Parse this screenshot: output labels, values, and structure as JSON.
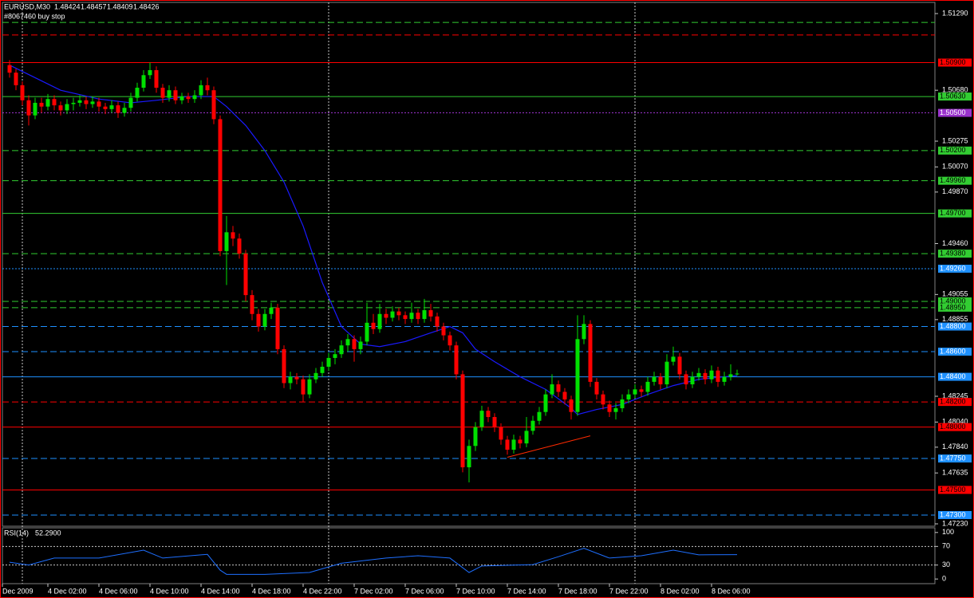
{
  "chart_data": [
    {
      "type": "candlestick",
      "symbol": "EURUSD,M30",
      "order_note": "#8067460 buy stop",
      "xlim": [
        -1.125,
        145
      ],
      "ylim": [
        1.47211,
        1.51379
      ],
      "xticks": [
        {
          "value": -1.125,
          "label": "Dec 2009"
        },
        {
          "value": 6,
          "label": "4 Dec 02:00"
        },
        {
          "value": 14,
          "label": "4 Dec 06:00"
        },
        {
          "value": 22,
          "label": "4 Dec 10:00"
        },
        {
          "value": 30,
          "label": "4 Dec 14:00"
        },
        {
          "value": 38,
          "label": "4 Dec 18:00"
        },
        {
          "value": 46,
          "label": "4 Dec 22:00"
        },
        {
          "value": 54,
          "label": "7 Dec 02:00"
        },
        {
          "value": 62,
          "label": "7 Dec 06:00"
        },
        {
          "value": 70,
          "label": "7 Dec 10:00"
        },
        {
          "value": 78,
          "label": "7 Dec 14:00"
        },
        {
          "value": 86,
          "label": "7 Dec 18:00"
        },
        {
          "value": 94,
          "label": "7 Dec 22:00"
        },
        {
          "value": 102,
          "label": "8 Dec 02:00"
        },
        {
          "value": 110,
          "label": "8 Dec 06:00"
        }
      ],
      "vgrid": [
        2,
        50,
        98
      ],
      "yticks": [
        {
          "value": 1.5129,
          "label": "1.51290"
        },
        {
          "value": 1.5068,
          "label": "1.50680"
        },
        {
          "value": 1.50275,
          "label": "1.50275"
        },
        {
          "value": 1.5007,
          "label": "1.50070"
        },
        {
          "value": 1.4987,
          "label": "1.49870"
        },
        {
          "value": 1.4946,
          "label": "1.49460"
        },
        {
          "value": 1.49055,
          "label": "1.49055"
        },
        {
          "value": 1.48855,
          "label": "1.48855"
        },
        {
          "value": 1.48245,
          "label": "1.48245"
        },
        {
          "value": 1.4804,
          "label": "1.48040"
        },
        {
          "value": 1.4784,
          "label": "1.47840"
        },
        {
          "value": 1.47635,
          "label": "1.47635"
        },
        {
          "value": 1.4723,
          "label": "1.47230"
        }
      ],
      "bull_color": "#00e000",
      "bear_color": "#ff0000",
      "candles": [
        [
          1.5088,
          1.5092,
          1.5078,
          1.5082
        ],
        [
          1.5082,
          1.5085,
          1.5068,
          1.5072
        ],
        [
          1.5072,
          1.5075,
          1.5056,
          1.506
        ],
        [
          1.506,
          1.5064,
          1.504,
          1.5048
        ],
        [
          1.5048,
          1.5062,
          1.5045,
          1.5058
        ],
        [
          1.5058,
          1.5062,
          1.505,
          1.5055
        ],
        [
          1.5055,
          1.5065,
          1.5052,
          1.5061
        ],
        [
          1.5061,
          1.5064,
          1.5052,
          1.5056
        ],
        [
          1.5056,
          1.5059,
          1.5048,
          1.5052
        ],
        [
          1.5052,
          1.5061,
          1.5049,
          1.5057
        ],
        [
          1.5057,
          1.5062,
          1.5052,
          1.5058
        ],
        [
          1.5058,
          1.5064,
          1.5055,
          1.506
        ],
        [
          1.506,
          1.5063,
          1.5053,
          1.5057
        ],
        [
          1.5057,
          1.5063,
          1.5054,
          1.5059
        ],
        [
          1.5059,
          1.5062,
          1.5051,
          1.5055
        ],
        [
          1.5055,
          1.5058,
          1.5049,
          1.5053
        ],
        [
          1.5053,
          1.506,
          1.505,
          1.5056
        ],
        [
          1.5056,
          1.5059,
          1.5046,
          1.505
        ],
        [
          1.505,
          1.5058,
          1.5047,
          1.5054
        ],
        [
          1.5054,
          1.5066,
          1.5051,
          1.5062
        ],
        [
          1.5062,
          1.5074,
          1.5059,
          1.507
        ],
        [
          1.507,
          1.5084,
          1.5067,
          1.508
        ],
        [
          1.508,
          1.509,
          1.5077,
          1.5084
        ],
        [
          1.5084,
          1.5087,
          1.5066,
          1.507
        ],
        [
          1.507,
          1.5073,
          1.5058,
          1.5062
        ],
        [
          1.5062,
          1.5072,
          1.5059,
          1.5068
        ],
        [
          1.5068,
          1.5071,
          1.5057,
          1.506
        ],
        [
          1.506,
          1.5066,
          1.5057,
          1.5063
        ],
        [
          1.5063,
          1.5066,
          1.5058,
          1.5061
        ],
        [
          1.5061,
          1.5068,
          1.5058,
          1.5064
        ],
        [
          1.5064,
          1.5076,
          1.5061,
          1.5072
        ],
        [
          1.5072,
          1.5078,
          1.5064,
          1.5068
        ],
        [
          1.5068,
          1.5071,
          1.5041,
          1.5045
        ],
        [
          1.5045,
          1.5048,
          1.4936,
          1.494
        ],
        [
          1.494,
          1.4968,
          1.4913,
          1.4955
        ],
        [
          1.4955,
          1.496,
          1.4944,
          1.495
        ],
        [
          1.495,
          1.4954,
          1.4934,
          1.4938
        ],
        [
          1.4938,
          1.4941,
          1.49,
          1.4905
        ],
        [
          1.4905,
          1.4909,
          1.4885,
          1.489
        ],
        [
          1.489,
          1.4894,
          1.4876,
          1.488
        ],
        [
          1.488,
          1.4894,
          1.4877,
          1.489
        ],
        [
          1.489,
          1.4899,
          1.4886,
          1.4895
        ],
        [
          1.4895,
          1.4898,
          1.4858,
          1.4862
        ],
        [
          1.4862,
          1.4865,
          1.4831,
          1.4835
        ],
        [
          1.4835,
          1.4844,
          1.483,
          1.484
        ],
        [
          1.484,
          1.4843,
          1.4834,
          1.4838
        ],
        [
          1.4838,
          1.4841,
          1.482,
          1.4826
        ],
        [
          1.4826,
          1.4842,
          1.4823,
          1.4838
        ],
        [
          1.4838,
          1.4847,
          1.4835,
          1.4843
        ],
        [
          1.4843,
          1.4852,
          1.484,
          1.4848
        ],
        [
          1.4848,
          1.4859,
          1.4845,
          1.4855
        ],
        [
          1.4855,
          1.4862,
          1.485,
          1.4858
        ],
        [
          1.4858,
          1.4869,
          1.4855,
          1.4865
        ],
        [
          1.4865,
          1.4874,
          1.486,
          1.487
        ],
        [
          1.487,
          1.4873,
          1.4852,
          1.4862
        ],
        [
          1.4862,
          1.4872,
          1.4858,
          1.4868
        ],
        [
          1.4868,
          1.4899,
          1.4865,
          1.4883
        ],
        [
          1.4883,
          1.489,
          1.4874,
          1.4878
        ],
        [
          1.4878,
          1.4898,
          1.4875,
          1.489
        ],
        [
          1.489,
          1.4894,
          1.4882,
          1.4887
        ],
        [
          1.4887,
          1.4896,
          1.4884,
          1.4892
        ],
        [
          1.4892,
          1.4895,
          1.4885,
          1.4889
        ],
        [
          1.4889,
          1.4892,
          1.4882,
          1.4886
        ],
        [
          1.4886,
          1.4899,
          1.4883,
          1.4891
        ],
        [
          1.4891,
          1.4894,
          1.4882,
          1.4886
        ],
        [
          1.4886,
          1.4902,
          1.4883,
          1.4893
        ],
        [
          1.4893,
          1.4898,
          1.4884,
          1.4888
        ],
        [
          1.4888,
          1.4891,
          1.4876,
          1.488
        ],
        [
          1.488,
          1.4883,
          1.4869,
          1.4873
        ],
        [
          1.4873,
          1.4876,
          1.4861,
          1.4865
        ],
        [
          1.4865,
          1.4868,
          1.4838,
          1.4842
        ],
        [
          1.4842,
          1.4845,
          1.4764,
          1.4768
        ],
        [
          1.4768,
          1.479,
          1.4756,
          1.4785
        ],
        [
          1.4785,
          1.4804,
          1.4781,
          1.48
        ],
        [
          1.48,
          1.4817,
          1.4797,
          1.4813
        ],
        [
          1.4813,
          1.4816,
          1.4804,
          1.4808
        ],
        [
          1.4808,
          1.4811,
          1.4796,
          1.48
        ],
        [
          1.48,
          1.4803,
          1.4786,
          1.479
        ],
        [
          1.479,
          1.4793,
          1.4778,
          1.4782
        ],
        [
          1.4782,
          1.4794,
          1.4779,
          1.479
        ],
        [
          1.479,
          1.4793,
          1.4783,
          1.4787
        ],
        [
          1.4787,
          1.4808,
          1.4784,
          1.4797
        ],
        [
          1.4797,
          1.4809,
          1.4794,
          1.4805
        ],
        [
          1.4805,
          1.4816,
          1.4802,
          1.4812
        ],
        [
          1.4812,
          1.483,
          1.4809,
          1.4826
        ],
        [
          1.4826,
          1.4842,
          1.4823,
          1.4834
        ],
        [
          1.4834,
          1.4837,
          1.4824,
          1.4828
        ],
        [
          1.4828,
          1.4831,
          1.4818,
          1.4822
        ],
        [
          1.4822,
          1.4825,
          1.4806,
          1.4812
        ],
        [
          1.4812,
          1.4889,
          1.4809,
          1.487
        ],
        [
          1.487,
          1.4889,
          1.4866,
          1.4882
        ],
        [
          1.4882,
          1.4885,
          1.4832,
          1.4836
        ],
        [
          1.4836,
          1.4839,
          1.4822,
          1.4826
        ],
        [
          1.4826,
          1.4829,
          1.4814,
          1.4818
        ],
        [
          1.4818,
          1.4821,
          1.4808,
          1.4812
        ],
        [
          1.4812,
          1.4819,
          1.4806,
          1.4815
        ],
        [
          1.4815,
          1.4826,
          1.4812,
          1.4822
        ],
        [
          1.4822,
          1.483,
          1.4819,
          1.4826
        ],
        [
          1.4826,
          1.4834,
          1.4823,
          1.483
        ],
        [
          1.483,
          1.4833,
          1.4824,
          1.4828
        ],
        [
          1.4828,
          1.484,
          1.4825,
          1.4836
        ],
        [
          1.4836,
          1.4844,
          1.4833,
          1.484
        ],
        [
          1.484,
          1.4843,
          1.483,
          1.4834
        ],
        [
          1.4834,
          1.4858,
          1.4831,
          1.4852
        ],
        [
          1.4852,
          1.4864,
          1.4849,
          1.4856
        ],
        [
          1.4856,
          1.4859,
          1.4838,
          1.4842
        ],
        [
          1.4842,
          1.4845,
          1.483,
          1.4834
        ],
        [
          1.4834,
          1.4844,
          1.4831,
          1.484
        ],
        [
          1.484,
          1.4847,
          1.4837,
          1.4843
        ],
        [
          1.4843,
          1.4846,
          1.4834,
          1.4838
        ],
        [
          1.4838,
          1.4849,
          1.4835,
          1.4845
        ],
        [
          1.4845,
          1.4848,
          1.4832,
          1.4836
        ],
        [
          1.4836,
          1.4844,
          1.4833,
          1.484
        ],
        [
          1.484,
          1.485,
          1.4837,
          1.4842
        ],
        [
          1.48424,
          1.48457,
          1.48409,
          1.48426
        ]
      ],
      "ma": {
        "color": "#1a1aff",
        "x": [
          0,
          4,
          8,
          14,
          19,
          23,
          28,
          32,
          34,
          37,
          40,
          43,
          46,
          49,
          52,
          55,
          58,
          62,
          66,
          69,
          71,
          73,
          76,
          80,
          84,
          88,
          89,
          92,
          96,
          100,
          104,
          108,
          112,
          114
        ],
        "values": [
          1.5088,
          1.5078,
          1.5068,
          1.5061,
          1.5058,
          1.506,
          1.5063,
          1.5063,
          1.5055,
          1.504,
          1.502,
          1.4995,
          1.496,
          1.4915,
          1.488,
          1.4866,
          1.4864,
          1.4868,
          1.4875,
          1.488,
          1.4875,
          1.4862,
          1.4852,
          1.484,
          1.483,
          1.4815,
          1.481,
          1.4814,
          1.4818,
          1.4826,
          1.4833,
          1.4838,
          1.484,
          1.4841
        ]
      },
      "trendline": {
        "color": "#ff2a00",
        "x": [
          78,
          91
        ],
        "values": [
          1.4776,
          1.4793
        ]
      },
      "levels": [
        {
          "value": 1.5122,
          "color": "#32cd32",
          "style": "dash"
        },
        {
          "value": 1.5112,
          "color": "#ff0000",
          "style": "dash"
        },
        {
          "value": 1.509,
          "label": "1.50900",
          "color": "#ff0000",
          "style": "solid"
        },
        {
          "value": 1.5063,
          "label": "1.50630",
          "color": "#32cd32",
          "style": "solid"
        },
        {
          "value": 1.505,
          "label": "1.50500",
          "color": "#9932cc",
          "style": "dot"
        },
        {
          "value": 1.502,
          "label": "1.50200",
          "color": "#32cd32",
          "style": "dash"
        },
        {
          "value": 1.4996,
          "label": "1.49960",
          "color": "#32cd32",
          "style": "dash"
        },
        {
          "value": 1.497,
          "label": "1.49700",
          "color": "#32cd32",
          "style": "solid"
        },
        {
          "value": 1.4938,
          "label": "1.49380",
          "color": "#32cd32",
          "style": "dash"
        },
        {
          "value": 1.4926,
          "label": "1.49260",
          "color": "#1e90ff",
          "style": "dot"
        },
        {
          "value": 1.49,
          "label": "1.49000",
          "color": "#32cd32",
          "style": "dash"
        },
        {
          "value": 1.4895,
          "label": "1.48950",
          "color": "#32cd32",
          "style": "dash"
        },
        {
          "value": 1.488,
          "label": "1.48800",
          "color": "#1e90ff",
          "style": "dash"
        },
        {
          "value": 1.486,
          "label": "1.48600",
          "color": "#1e90ff",
          "style": "dash"
        },
        {
          "value": 1.484,
          "label": "1.48400",
          "color": "#1e90ff",
          "style": "solid"
        },
        {
          "value": 1.482,
          "label": "1.48200",
          "color": "#ff0000",
          "style": "dash"
        },
        {
          "value": 1.48,
          "label": "1.48000",
          "color": "#ff0000",
          "style": "solid"
        },
        {
          "value": 1.4775,
          "label": "1.47750",
          "color": "#1e90ff",
          "style": "dash"
        },
        {
          "value": 1.475,
          "label": "1.47500",
          "color": "#ff0000",
          "style": "solid"
        },
        {
          "value": 1.473,
          "label": "1.47300",
          "color": "#1e90ff",
          "style": "dash"
        }
      ]
    },
    {
      "type": "line",
      "name": "RSI(14)",
      "current": {
        "value": 52.29,
        "label": "52.2900"
      },
      "color": "#1e6fff",
      "xlim": [
        -1.125,
        145
      ],
      "ylim": [
        -10,
        110
      ],
      "yticks": [
        100,
        70,
        30,
        0
      ],
      "levels": [
        70,
        30
      ],
      "x": [
        0,
        3,
        7,
        14,
        21,
        24,
        31,
        33,
        34,
        40,
        47,
        52,
        59,
        64,
        69,
        72,
        74,
        82,
        86,
        90,
        94,
        99,
        104,
        108,
        114
      ],
      "values": [
        36,
        30,
        45,
        45,
        62,
        45,
        53,
        19,
        10,
        10,
        14,
        34,
        45,
        50,
        45,
        14,
        28,
        31,
        48,
        66,
        45,
        50,
        62,
        52,
        52.29
      ]
    }
  ]
}
